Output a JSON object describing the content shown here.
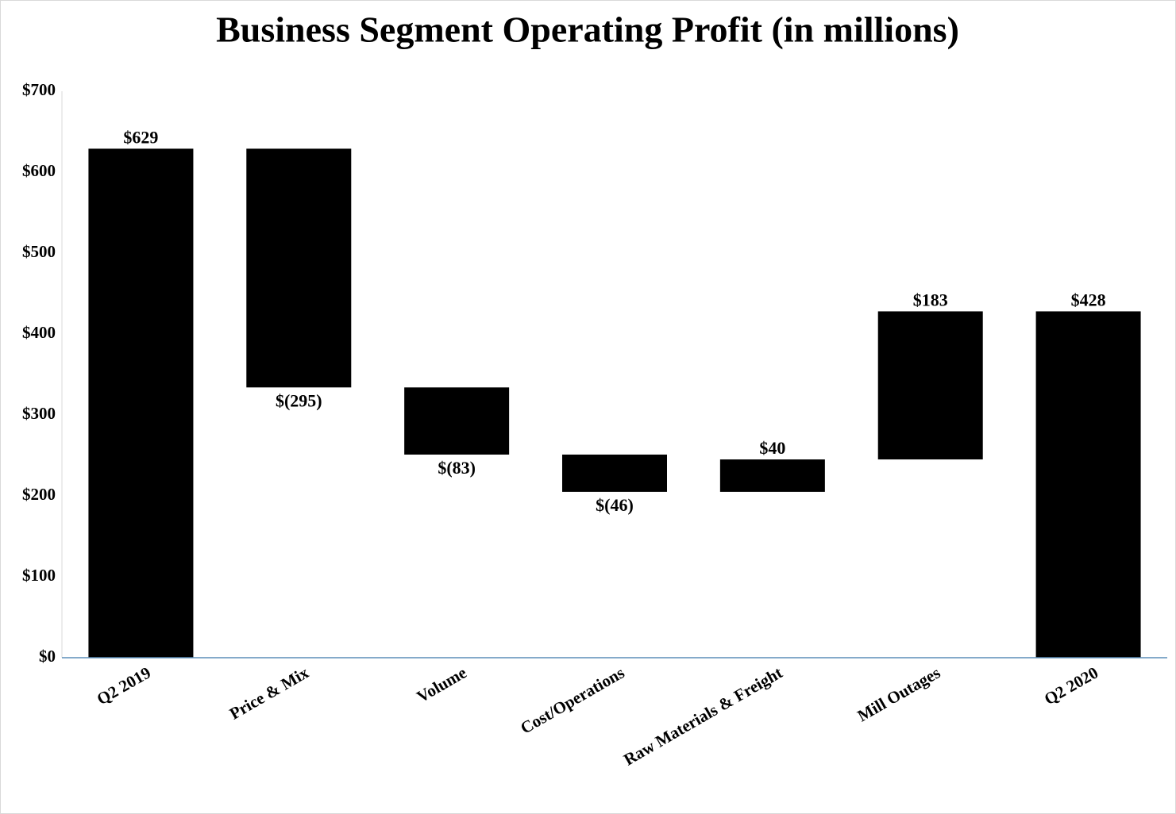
{
  "chart_data": {
    "type": "waterfall",
    "title": "Business Segment Operating Profit (in millions)",
    "categories": [
      "Q2 2019",
      "Price & Mix",
      "Volume",
      "Cost/Operations",
      "Raw Materials & Freight",
      "Mill Outages",
      "Q2 2020"
    ],
    "values": [
      629,
      -295,
      -83,
      -46,
      40,
      183,
      428
    ],
    "value_labels": [
      "$629",
      "$(295)",
      "$(83)",
      "$(46)",
      "$40",
      "$183",
      "$428"
    ],
    "color": "#000000",
    "ylim": [
      0,
      700
    ],
    "yticks": [
      {
        "value": 0,
        "label": "$0"
      },
      {
        "value": 100,
        "label": "$100"
      },
      {
        "value": 200,
        "label": "$200"
      },
      {
        "value": 300,
        "label": "$300"
      },
      {
        "value": 400,
        "label": "$400"
      },
      {
        "value": 500,
        "label": "$500"
      },
      {
        "value": 600,
        "label": "$600"
      },
      {
        "value": 700,
        "label": "$700"
      }
    ],
    "grid": false
  }
}
